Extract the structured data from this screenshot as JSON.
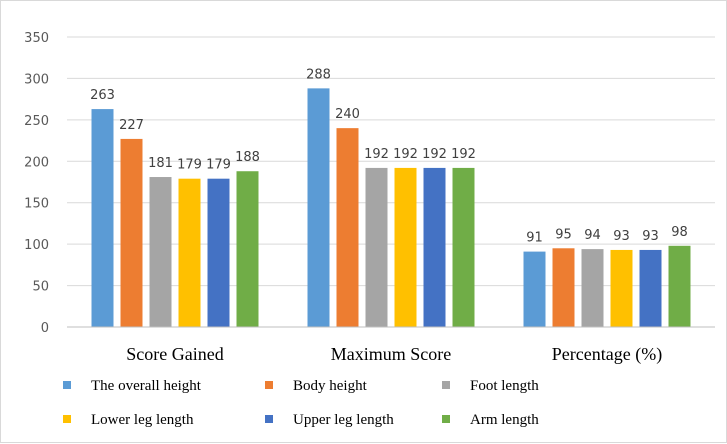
{
  "chart_data": {
    "type": "bar",
    "categories": [
      "Score Gained",
      "Maximum Score",
      "Percentage (%)"
    ],
    "series": [
      {
        "name": "The overall height",
        "values": [
          263,
          288,
          91
        ],
        "color": "#5b9bd5"
      },
      {
        "name": "Body height",
        "values": [
          227,
          240,
          95
        ],
        "color": "#ed7d31"
      },
      {
        "name": "Foot length",
        "values": [
          181,
          192,
          94
        ],
        "color": "#a5a5a5"
      },
      {
        "name": "Lower leg length",
        "values": [
          179,
          192,
          93
        ],
        "color": "#ffc000"
      },
      {
        "name": "Upper leg length",
        "values": [
          179,
          192,
          93
        ],
        "color": "#4472c4"
      },
      {
        "name": "Arm length",
        "values": [
          188,
          192,
          98
        ],
        "color": "#70ad47"
      }
    ],
    "title": "",
    "xlabel": "",
    "ylabel": "",
    "ylim": [
      0,
      350
    ],
    "yticks": [
      0,
      50,
      100,
      150,
      200,
      250,
      300,
      350
    ],
    "grid": true,
    "legend": "bottom"
  }
}
